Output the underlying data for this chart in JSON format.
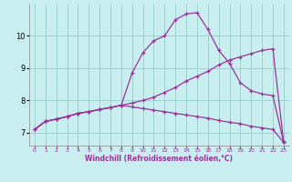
{
  "xlabel": "Windchill (Refroidissement éolien,°C)",
  "background_color": "#c8eef0",
  "grid_color": "#99cccc",
  "line_color": "#993399",
  "xlim": [
    -0.5,
    23.5
  ],
  "ylim": [
    6.6,
    11.0
  ],
  "yticks": [
    7,
    8,
    9,
    10
  ],
  "xticks": [
    0,
    1,
    2,
    3,
    4,
    5,
    6,
    7,
    8,
    9,
    10,
    11,
    12,
    13,
    14,
    15,
    16,
    17,
    18,
    19,
    20,
    21,
    22,
    23
  ],
  "curve1_x": [
    0,
    1,
    2,
    3,
    4,
    5,
    6,
    7,
    8,
    9,
    10,
    11,
    12,
    13,
    14,
    15,
    16,
    17,
    18,
    19,
    20,
    21,
    22,
    23
  ],
  "curve1_y": [
    7.1,
    7.35,
    7.42,
    7.5,
    7.6,
    7.65,
    7.72,
    7.78,
    7.85,
    8.85,
    9.48,
    9.85,
    10.0,
    10.5,
    10.68,
    10.72,
    10.2,
    9.55,
    9.15,
    8.55,
    8.3,
    8.2,
    8.15,
    6.7
  ],
  "curve2_x": [
    0,
    1,
    2,
    3,
    4,
    5,
    6,
    7,
    8,
    9,
    10,
    11,
    12,
    13,
    14,
    15,
    16,
    17,
    18,
    19,
    20,
    21,
    22,
    23
  ],
  "curve2_y": [
    7.1,
    7.35,
    7.42,
    7.5,
    7.6,
    7.65,
    7.72,
    7.78,
    7.85,
    7.92,
    8.0,
    8.1,
    8.25,
    8.4,
    8.6,
    8.75,
    8.9,
    9.1,
    9.25,
    9.35,
    9.45,
    9.55,
    9.6,
    6.7
  ],
  "curve3_x": [
    0,
    1,
    2,
    3,
    4,
    5,
    6,
    7,
    8,
    9,
    10,
    11,
    12,
    13,
    14,
    15,
    16,
    17,
    18,
    19,
    20,
    21,
    22,
    23
  ],
  "curve3_y": [
    7.1,
    7.35,
    7.42,
    7.5,
    7.6,
    7.65,
    7.72,
    7.78,
    7.85,
    7.8,
    7.75,
    7.7,
    7.65,
    7.6,
    7.55,
    7.5,
    7.45,
    7.38,
    7.32,
    7.28,
    7.2,
    7.15,
    7.1,
    6.7
  ]
}
